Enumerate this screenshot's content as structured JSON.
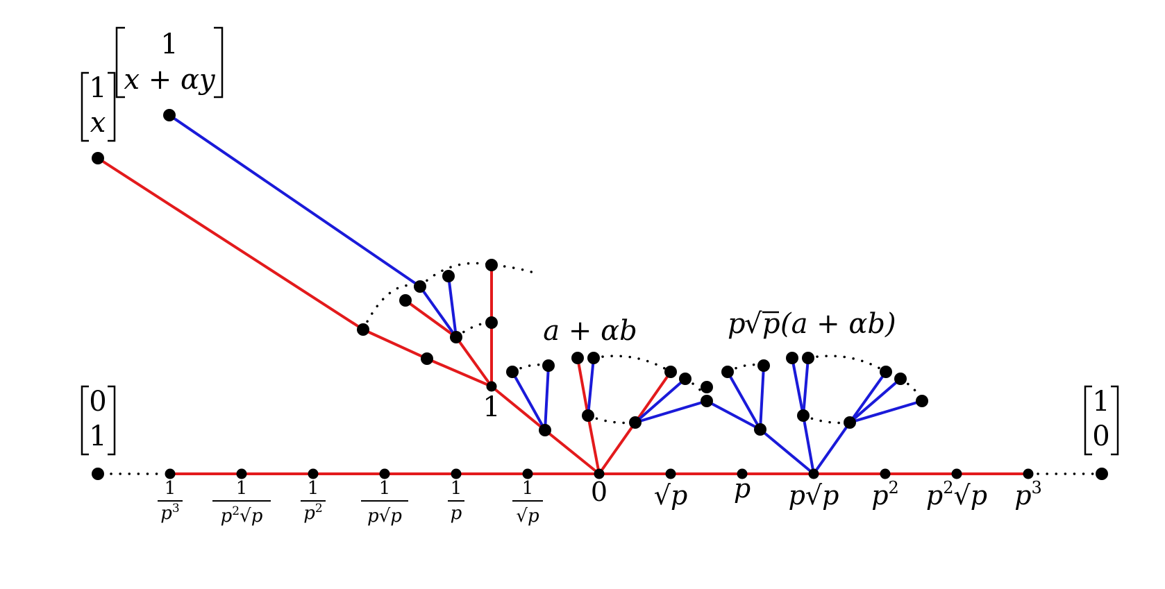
{
  "matrices": {
    "top_left": {
      "top": "1",
      "bottom": "x"
    },
    "top_right": {
      "top": "1",
      "bottom": "x + αy"
    },
    "zero_one": {
      "top": "0",
      "bottom": "1"
    },
    "one_zero": {
      "top": "1",
      "bottom": "0"
    }
  },
  "vertex_labels": {
    "one": "1",
    "cluster_a": "a + αb",
    "cluster_b_prefix": "p",
    "cluster_b_radicand": "p",
    "cluster_b_suffix": "(a + αb)"
  },
  "axis_ticks": {
    "inv_p3": {
      "num": "1",
      "den": "p3"
    },
    "inv_p2sqrtp": {
      "num": "1",
      "den": "p2√p"
    },
    "inv_p2": {
      "num": "1",
      "den": "p2"
    },
    "inv_psqrtp": {
      "num": "1",
      "den": "p√p"
    },
    "inv_p": {
      "num": "1",
      "den": "p"
    },
    "inv_sqrtp": {
      "num": "1",
      "den": "√p"
    },
    "zero": "0",
    "sqrtp": "√p",
    "p": "p",
    "psqrtp": "p√p",
    "p2": "p2",
    "p2sqrtp": "p2√p",
    "p3": "p3"
  },
  "colors": {
    "red_edge": "#e31a1c",
    "blue_edge": "#1a1ad9",
    "node": "#000000"
  }
}
